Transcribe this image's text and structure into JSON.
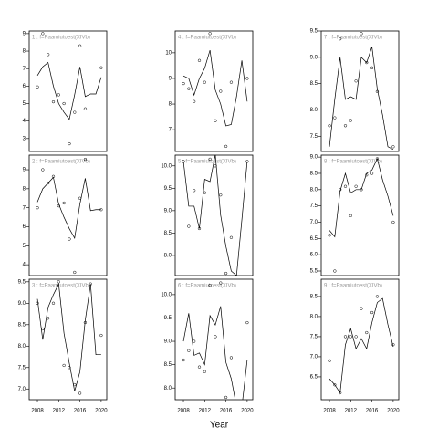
{
  "chart_data": {
    "type": "scatter",
    "xlabel": "Year",
    "xlim": [
      2006.45,
      2021.05
    ],
    "xticks": [
      2008,
      2012,
      2016,
      2020
    ],
    "panels": [
      {
        "title": "1 : f=Paamiutoest(XIVb)",
        "ylim": [
          2.26,
          9.15
        ],
        "yticks": [
          3,
          4,
          5,
          6,
          7,
          8,
          9
        ],
        "x": [
          2008,
          2009,
          2010,
          2011,
          2012,
          2013,
          2014,
          2015,
          2016,
          2017,
          2018,
          2019,
          2020
        ],
        "points": [
          5.95,
          9.0,
          7.8,
          5.1,
          5.5,
          5.0,
          2.7,
          4.5,
          8.3,
          4.7,
          null,
          null,
          7.05
        ],
        "line": [
          6.6,
          7.1,
          7.35,
          6.0,
          5.0,
          4.5,
          4.1,
          5.5,
          7.1,
          5.4,
          5.55,
          5.55,
          6.5
        ]
      },
      {
        "title": "2 : f=Paamiutoest(XIVb)",
        "ylim": [
          3.43,
          9.77
        ],
        "yticks": [
          4,
          5,
          6,
          7,
          8,
          9
        ],
        "x": [
          2008,
          2009,
          2010,
          2011,
          2012,
          2013,
          2014,
          2015,
          2016,
          2017,
          2018,
          2019,
          2020
        ],
        "points": [
          7.0,
          9.0,
          8.3,
          8.65,
          7.1,
          7.25,
          5.35,
          3.6,
          7.5,
          9.55,
          null,
          null,
          6.9
        ],
        "line": [
          7.3,
          8.0,
          8.3,
          8.6,
          7.2,
          6.5,
          5.9,
          5.4,
          7.2,
          8.55,
          6.85,
          6.9,
          6.9
        ]
      },
      {
        "title": "3 : f=Paamiutoest(XIVb)",
        "ylim": [
          6.75,
          9.56
        ],
        "yticks": [
          {
            "value": 7,
            "label": "7.0"
          },
          7.5,
          {
            "value": 8,
            "label": "8.0"
          },
          8.5,
          {
            "value": 9,
            "label": "9.0"
          },
          9.5
        ],
        "x": [
          2008,
          2009,
          2010,
          2011,
          2012,
          2013,
          2014,
          2015,
          2016,
          2017,
          2018,
          2019,
          2020
        ],
        "points": [
          9.0,
          8.4,
          8.65,
          9.0,
          9.5,
          7.55,
          7.5,
          7.1,
          6.9,
          8.55,
          9.45,
          null,
          8.25
        ],
        "line": [
          9.1,
          8.15,
          8.9,
          9.2,
          9.45,
          8.3,
          7.6,
          6.95,
          7.4,
          8.6,
          9.45,
          7.8,
          7.8
        ]
      },
      {
        "title": "4 : f=Paamiutoest(XIVb)",
        "ylim": [
          6.15,
          10.85
        ],
        "yticks": [
          7,
          8,
          9,
          10
        ],
        "x": [
          2008,
          2009,
          2010,
          2011,
          2012,
          2013,
          2014,
          2015,
          2016,
          2017,
          2018,
          2019,
          2020
        ],
        "points": [
          8.8,
          8.6,
          8.1,
          9.7,
          8.85,
          10.75,
          7.35,
          8.5,
          6.35,
          8.85,
          null,
          null,
          9.0
        ],
        "line": [
          9.1,
          9.0,
          8.35,
          9.0,
          9.4,
          10.1,
          8.55,
          8.0,
          7.15,
          7.2,
          8.3,
          9.7,
          8.1
        ]
      },
      {
        "title": "5 : f=Paamiutoest(XIVb)",
        "ylim": [
          7.55,
          10.24
        ],
        "yticks": [
          {
            "value": 8,
            "label": "8.0"
          },
          8.5,
          {
            "value": 9,
            "label": "9.0"
          },
          9.5,
          {
            "value": 10,
            "label": "10.0"
          }
        ],
        "x": [
          2008,
          2009,
          2010,
          2011,
          2012,
          2013,
          2014,
          2015,
          2016,
          2017,
          2018,
          2019,
          2020
        ],
        "points": [
          10.1,
          8.65,
          9.45,
          8.6,
          9.4,
          10.15,
          10.0,
          9.35,
          7.6,
          8.4,
          null,
          null,
          10.1
        ],
        "line": [
          10.1,
          9.1,
          9.1,
          8.6,
          9.7,
          9.65,
          10.25,
          8.9,
          8.2,
          7.65,
          7.55,
          8.8,
          10.1
        ]
      },
      {
        "title": "6 : f=Paamiutoest(XIVb)",
        "ylim": [
          7.75,
          10.33
        ],
        "yticks": [
          {
            "value": 8,
            "label": "8.0"
          },
          8.5,
          {
            "value": 9,
            "label": "9.0"
          },
          9.5,
          {
            "value": 10,
            "label": "10.0"
          }
        ],
        "x": [
          2008,
          2009,
          2010,
          2011,
          2012,
          2013,
          2014,
          2015,
          2016,
          2017,
          2018,
          2019,
          2020
        ],
        "points": [
          8.6,
          8.8,
          9.0,
          8.45,
          8.35,
          10.2,
          9.1,
          10.25,
          7.8,
          8.65,
          null,
          null,
          9.4
        ],
        "line": [
          9.0,
          9.6,
          8.7,
          8.75,
          8.5,
          9.55,
          9.35,
          9.75,
          8.55,
          8.2,
          7.6,
          7.6,
          8.6
        ]
      },
      {
        "title": "7 : f=Paamiutoest(XIVb)",
        "ylim": [
          7.21,
          9.5
        ],
        "yticks": [
          7.5,
          {
            "value": 8,
            "label": "8.0"
          },
          8.5,
          {
            "value": 9,
            "label": "9.0"
          },
          9.5
        ],
        "x": [
          2008,
          2009,
          2010,
          2011,
          2012,
          2013,
          2014,
          2015,
          2016,
          2017,
          2018,
          2019,
          2020
        ],
        "points": [
          7.7,
          7.85,
          9.35,
          7.7,
          7.8,
          8.55,
          9.45,
          8.9,
          8.8,
          8.35,
          null,
          null,
          7.3
        ],
        "line": [
          7.3,
          8.2,
          9.0,
          8.2,
          8.25,
          8.2,
          9.0,
          8.9,
          9.2,
          8.4,
          7.9,
          7.3,
          7.25
        ]
      },
      {
        "title": "8 : f=Paamiutoest(XIVb)",
        "ylim": [
          5.36,
          9.06
        ],
        "yticks": [
          5.5,
          {
            "value": 6,
            "label": "6.0"
          },
          6.5,
          {
            "value": 7,
            "label": "7.0"
          },
          7.5,
          {
            "value": 8,
            "label": "8.0"
          },
          8.5,
          {
            "value": 9,
            "label": "9.0"
          }
        ],
        "x": [
          2008,
          2009,
          2010,
          2011,
          2012,
          2013,
          2014,
          2015,
          2016,
          2017,
          2018,
          2019,
          2020
        ],
        "points": [
          6.6,
          5.5,
          8.0,
          8.1,
          7.2,
          8.1,
          8.0,
          8.45,
          8.5,
          8.95,
          null,
          null,
          7.0
        ],
        "line": [
          6.75,
          6.55,
          7.95,
          8.5,
          7.9,
          8.0,
          8.0,
          8.5,
          8.6,
          8.95,
          8.3,
          7.8,
          7.2
        ]
      },
      {
        "title": "9 : f=Paamiutoest(XIVb)",
        "ylim": [
          5.93,
          8.93
        ],
        "yticks": [
          6.5,
          {
            "value": 7,
            "label": "7.0"
          },
          7.5,
          {
            "value": 8,
            "label": "8.0"
          },
          8.5
        ],
        "x": [
          2008,
          2009,
          2010,
          2011,
          2012,
          2013,
          2014,
          2015,
          2016,
          2017,
          2018,
          2019,
          2020
        ],
        "points": [
          6.9,
          6.3,
          6.1,
          7.5,
          7.5,
          7.5,
          8.2,
          7.6,
          8.1,
          8.5,
          null,
          null,
          7.3
        ],
        "line": [
          6.45,
          6.3,
          6.1,
          7.3,
          7.7,
          7.2,
          7.45,
          7.2,
          7.85,
          8.35,
          8.45,
          7.8,
          7.25
        ]
      }
    ]
  }
}
